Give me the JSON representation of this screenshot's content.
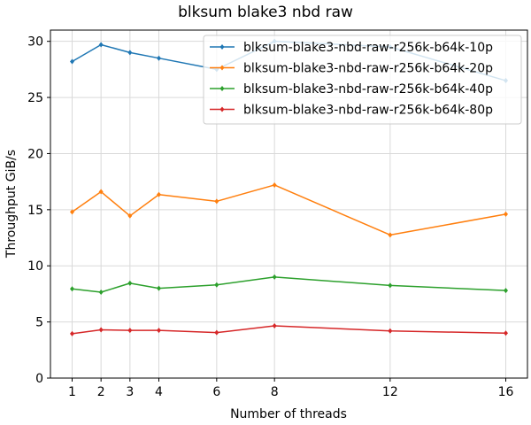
{
  "chart_data": {
    "type": "line",
    "title": "blksum blake3 nbd raw",
    "xlabel": "Number of threads",
    "ylabel": "Throughput GiB/s",
    "x": [
      1,
      2,
      3,
      4,
      6,
      8,
      12,
      16
    ],
    "xticks": [
      1,
      2,
      3,
      4,
      6,
      8,
      12,
      16
    ],
    "yticks": [
      0,
      5,
      10,
      15,
      20,
      25,
      30
    ],
    "xlim": [
      0.25,
      16.75
    ],
    "ylim": [
      0,
      31.0
    ],
    "grid": true,
    "legend_position": "top-right",
    "series": [
      {
        "name": "blksum-blake3-nbd-raw-r256k-b64k-10p",
        "color": "#1f77b4",
        "values": [
          28.2,
          29.7,
          29.0,
          28.5,
          27.5,
          30.0,
          29.5,
          26.5
        ]
      },
      {
        "name": "blksum-blake3-nbd-raw-r256k-b64k-20p",
        "color": "#ff7f0e",
        "values": [
          14.8,
          16.6,
          14.45,
          16.35,
          15.75,
          17.2,
          12.75,
          14.6
        ]
      },
      {
        "name": "blksum-blake3-nbd-raw-r256k-b64k-40p",
        "color": "#2ca02c",
        "values": [
          7.95,
          7.65,
          8.45,
          8.0,
          8.3,
          9.0,
          8.25,
          7.8
        ]
      },
      {
        "name": "blksum-blake3-nbd-raw-r256k-b64k-80p",
        "color": "#d62728",
        "values": [
          3.95,
          4.3,
          4.25,
          4.25,
          4.05,
          4.65,
          4.2,
          4.0
        ]
      }
    ]
  }
}
